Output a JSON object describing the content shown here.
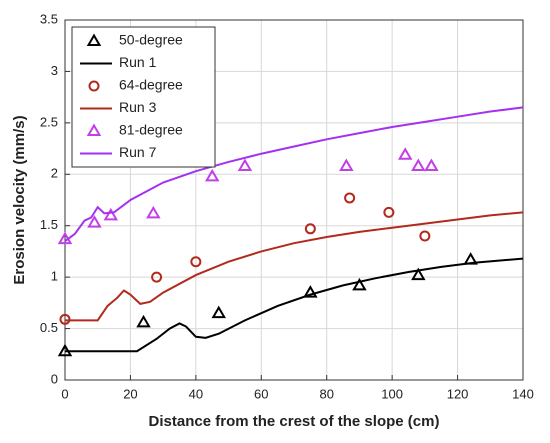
{
  "chart_data": {
    "type": "line",
    "xlabel": "Distance from the crest of the slope (cm)",
    "ylabel": "Erosion velocity (mm/s)",
    "xlim": [
      0,
      140
    ],
    "xticks": [
      0,
      20,
      40,
      60,
      80,
      100,
      120,
      140
    ],
    "ylim": [
      0,
      3.5
    ],
    "yticks": [
      0,
      0.5,
      1,
      1.5,
      2,
      2.5,
      3,
      3.5
    ],
    "grid": true,
    "legend": "upper left",
    "series": [
      {
        "name": "50-degree",
        "color": "#000000",
        "marker": "triangle",
        "x": [
          0,
          24,
          47,
          75,
          90,
          108,
          124
        ],
        "values": [
          0.28,
          0.56,
          0.65,
          0.85,
          0.92,
          1.02,
          1.17
        ]
      },
      {
        "name": "Run 1",
        "color": "#000000",
        "marker": null,
        "x": [
          0,
          22,
          28,
          32,
          35,
          37,
          40,
          43,
          47,
          55,
          65,
          75,
          85,
          95,
          105,
          115,
          125,
          140
        ],
        "values": [
          0.28,
          0.28,
          0.4,
          0.5,
          0.55,
          0.52,
          0.42,
          0.41,
          0.45,
          0.58,
          0.72,
          0.83,
          0.92,
          0.99,
          1.05,
          1.1,
          1.14,
          1.18
        ]
      },
      {
        "name": "64-degree",
        "color": "#b22a1e",
        "marker": "circle",
        "x": [
          0,
          28,
          40,
          75,
          87,
          99,
          110
        ],
        "values": [
          0.59,
          1.0,
          1.15,
          1.47,
          1.77,
          1.63,
          1.4
        ]
      },
      {
        "name": "Run 3",
        "color": "#b22a1e",
        "marker": null,
        "x": [
          0,
          10,
          13,
          16,
          18,
          20,
          23,
          26,
          30,
          40,
          50,
          60,
          70,
          80,
          90,
          100,
          110,
          120,
          130,
          140
        ],
        "values": [
          0.58,
          0.58,
          0.72,
          0.8,
          0.87,
          0.83,
          0.74,
          0.76,
          0.85,
          1.02,
          1.15,
          1.25,
          1.33,
          1.39,
          1.44,
          1.48,
          1.52,
          1.56,
          1.6,
          1.63
        ]
      },
      {
        "name": "81-degree",
        "color": "#c23ee8",
        "marker": "triangle",
        "x": [
          0,
          9,
          14,
          27,
          45,
          55,
          86,
          104,
          108,
          112
        ],
        "values": [
          1.37,
          1.53,
          1.6,
          1.62,
          1.98,
          2.08,
          2.08,
          2.19,
          2.08,
          2.08
        ]
      },
      {
        "name": "Run 7",
        "color": "#a431f0",
        "marker": null,
        "x": [
          0,
          3,
          6,
          8,
          10,
          12,
          15,
          20,
          30,
          40,
          50,
          60,
          70,
          80,
          90,
          100,
          110,
          120,
          130,
          140
        ],
        "values": [
          1.35,
          1.42,
          1.55,
          1.58,
          1.68,
          1.62,
          1.63,
          1.75,
          1.92,
          2.03,
          2.12,
          2.2,
          2.27,
          2.34,
          2.4,
          2.46,
          2.51,
          2.56,
          2.61,
          2.65
        ]
      }
    ]
  }
}
